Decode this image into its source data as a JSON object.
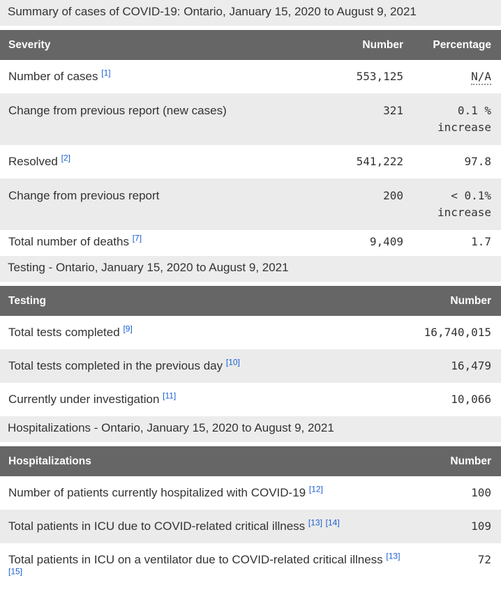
{
  "colors": {
    "header_bg": "#666666",
    "header_text": "#ffffff",
    "row_stripe": "#ebebeb",
    "caption_bg": "#ececec",
    "text": "#333333",
    "footnote_link": "#1b5fd2"
  },
  "sections": [
    {
      "caption": "Summary of cases of COVID-19: Ontario, January 15, 2020 to August 9, 2021",
      "columns": [
        "Severity",
        "Number",
        "Percentage"
      ],
      "rows": [
        {
          "label": "Number of cases",
          "footnotes": [
            "[1]"
          ],
          "number": "553,125",
          "percentage": "N/A"
        },
        {
          "label": "Change from previous report (new cases)",
          "footnotes": [],
          "number": "321",
          "percentage_lines": [
            "0.1 %",
            "increase"
          ]
        },
        {
          "label": "Resolved",
          "footnotes": [
            "[2]"
          ],
          "number": "541,222",
          "percentage": "97.8"
        },
        {
          "label": "Change from previous report",
          "footnotes": [],
          "number": "200",
          "percentage_lines": [
            "< 0.1%",
            "increase"
          ]
        },
        {
          "label": "Total number of deaths",
          "footnotes": [
            "[7]"
          ],
          "number": "9,409",
          "percentage": "1.7"
        }
      ]
    },
    {
      "caption": "Testing - Ontario, January 15, 2020 to August 9, 2021",
      "columns": [
        "Testing",
        "Number"
      ],
      "rows": [
        {
          "label": "Total tests completed",
          "footnotes": [
            "[9]"
          ],
          "number": "16,740,015"
        },
        {
          "label": "Total tests completed in the previous day",
          "footnotes": [
            "[10]"
          ],
          "number": "16,479"
        },
        {
          "label": "Currently under investigation",
          "footnotes": [
            "[11]"
          ],
          "number": "10,066"
        }
      ]
    },
    {
      "caption": "Hospitalizations - Ontario, January 15, 2020 to August 9, 2021",
      "columns": [
        "Hospitalizations",
        "Number"
      ],
      "rows": [
        {
          "label": "Number of patients currently hospitalized with COVID-19",
          "footnotes": [
            "[12]"
          ],
          "number": "100"
        },
        {
          "label": "Total patients in ICU due to COVID-related critical illness",
          "footnotes": [
            "[13]",
            "[14]"
          ],
          "number": "109"
        },
        {
          "label": "Total patients in ICU on a ventilator due to COVID-related critical illness",
          "footnotes": [
            "[13]",
            "[15]"
          ],
          "number": "72"
        }
      ]
    }
  ]
}
